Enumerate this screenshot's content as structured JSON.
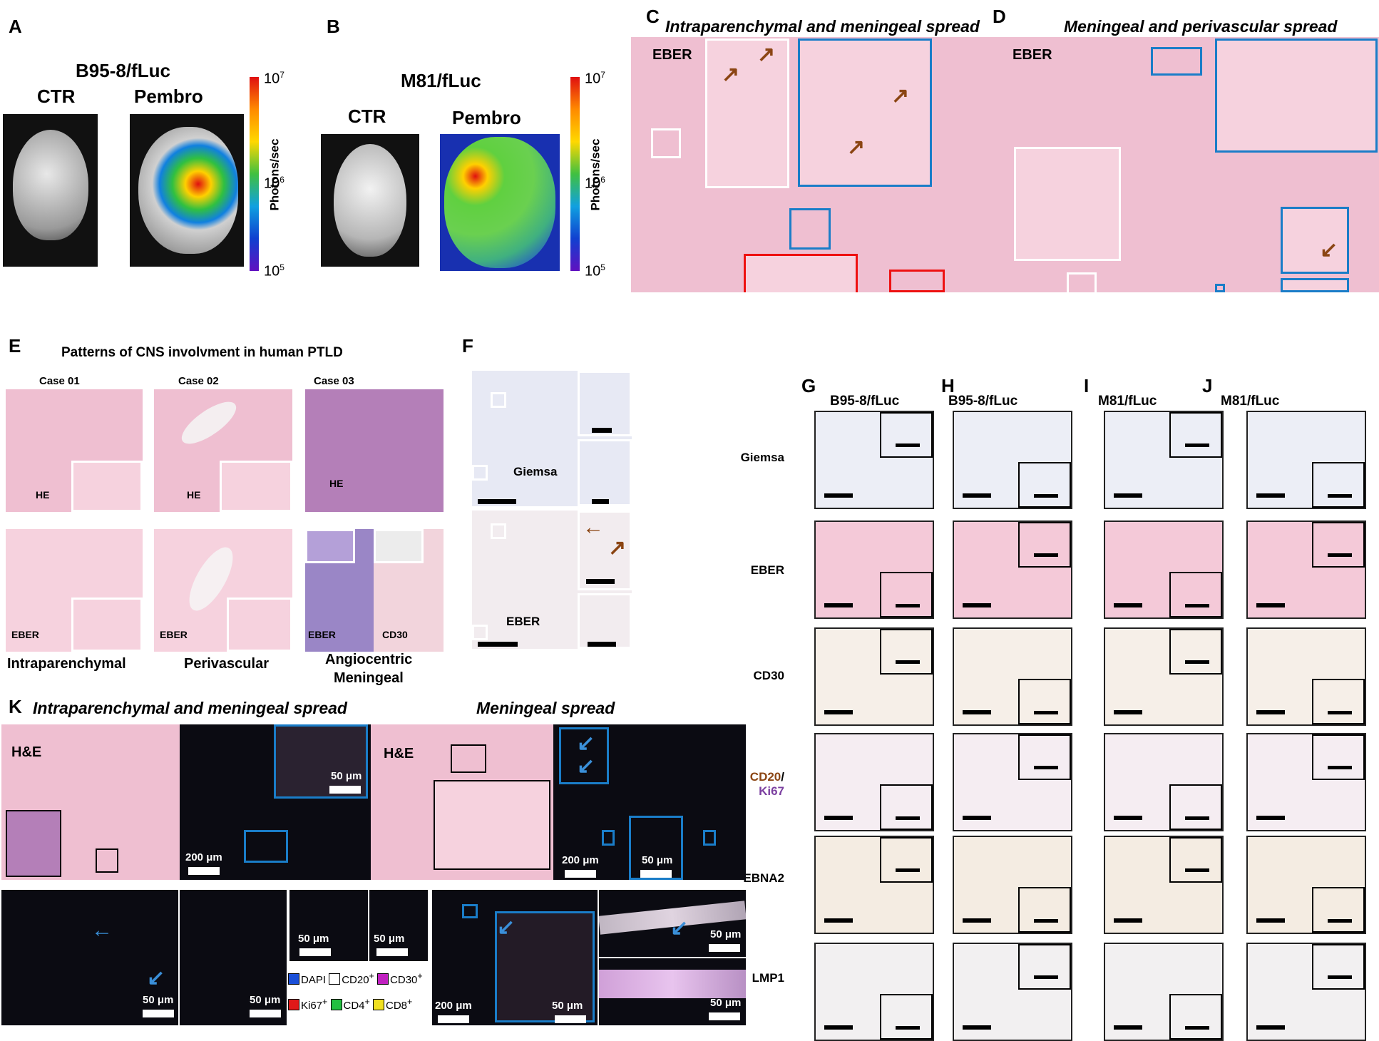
{
  "panels": {
    "A": {
      "label": "A",
      "title": "B95-8/fLuc",
      "ctr": "CTR",
      "pembro": "Pembro",
      "cbar_top": "10",
      "cbar_top_exp": "7",
      "cbar_mid": "10",
      "cbar_mid_exp": "6",
      "cbar_bot": "10",
      "cbar_bot_exp": "5",
      "cbar_unit": "Photons/sec"
    },
    "B": {
      "label": "B",
      "title": "M81/fLuc",
      "ctr": "CTR",
      "pembro": "Pembro",
      "cbar_top": "10",
      "cbar_top_exp": "7",
      "cbar_mid": "10",
      "cbar_mid_exp": "6",
      "cbar_bot": "10",
      "cbar_bot_exp": "5",
      "cbar_unit": "Photons/sec"
    },
    "C": {
      "label": "C",
      "title": "Intraparenchymal and meningeal spread",
      "stain": "EBER"
    },
    "D": {
      "label": "D",
      "title": "Meningeal and perivascular spread",
      "stain": "EBER"
    },
    "E": {
      "label": "E",
      "title": "Patterns of CNS involvment in human PTLD",
      "cases": [
        "Case 01",
        "Case 02",
        "Case 03"
      ],
      "he": "HE",
      "eber": "EBER",
      "cd30": "CD30",
      "patterns": [
        "Intraparenchymal",
        "Perivascular",
        "Angiocentric",
        "Meningeal"
      ]
    },
    "F": {
      "label": "F",
      "giemsa": "Giemsa",
      "eber": "EBER"
    },
    "G": {
      "label": "G",
      "title": "B95-8/fLuc"
    },
    "H": {
      "label": "H",
      "title": "B95-8/fLuc"
    },
    "I": {
      "label": "I",
      "title": "M81/fLuc"
    },
    "J": {
      "label": "J",
      "title": "M81/fLuc"
    },
    "K": {
      "label": "K",
      "title_left": "Intraparenchymal and meningeal spread",
      "title_right": "Meningeal spread",
      "he": "H&E",
      "scale_50": "50 μm",
      "scale_200": "200 μm"
    }
  },
  "row_labels": [
    "Giemsa",
    "EBER",
    "CD30",
    "CD20",
    "/",
    "Ki67",
    "EBNA2",
    "LMP1"
  ],
  "legend": {
    "items": [
      {
        "name": "DAPI",
        "sup": "",
        "color": "#1a4fd8"
      },
      {
        "name": "CD20",
        "sup": "+",
        "color": "#ffffff"
      },
      {
        "name": "CD30",
        "sup": "+",
        "color": "#c020c0"
      },
      {
        "name": "Ki67",
        "sup": "+",
        "color": "#e01818"
      },
      {
        "name": "CD4",
        "sup": "+",
        "color": "#22c040"
      },
      {
        "name": "CD8",
        "sup": "+",
        "color": "#f0e020"
      }
    ]
  },
  "colors": {
    "blue_box": "#1a7dc8",
    "red_box": "#e11111",
    "arrow": "#8b4513",
    "cd20": "#8b4513",
    "ki67": "#7b3fa0"
  }
}
